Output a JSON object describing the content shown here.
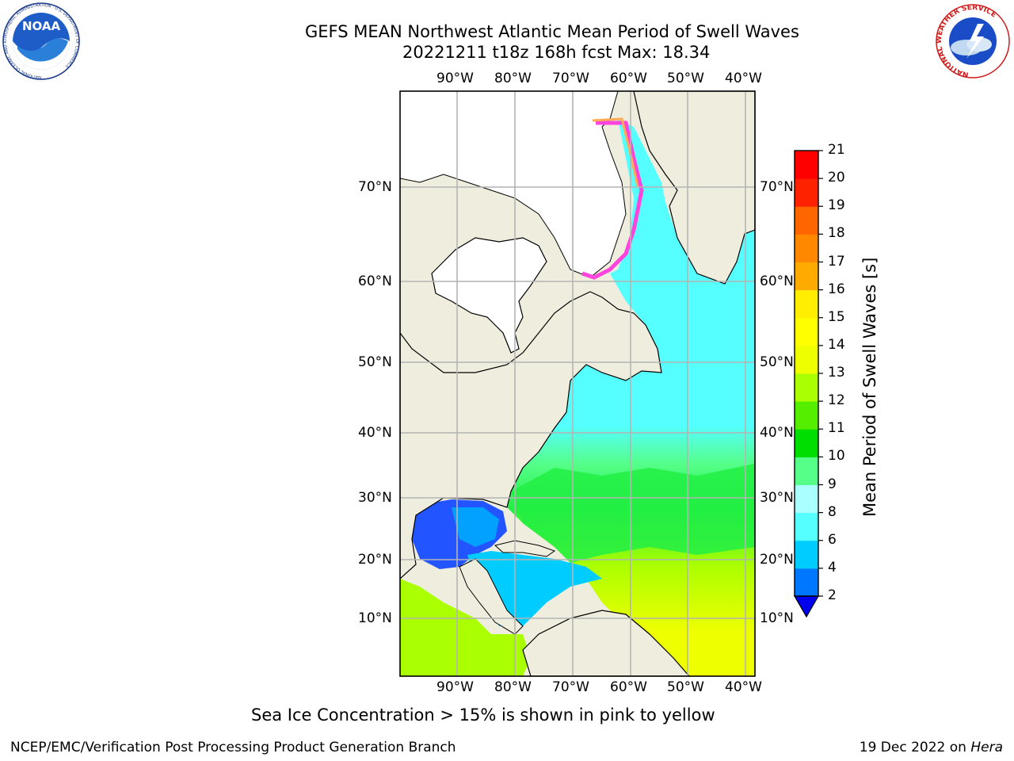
{
  "header": {
    "title_line1": "GEFS MEAN Northwest Atlantic Mean Period of Swell Waves",
    "title_line2": "20221211 t18z 168h fcst   Max: 18.34"
  },
  "logos": {
    "noaa_text": "NOAA",
    "noaa_ring_text": "NATIONAL OCEANIC AND ATMOSPHERIC ADMINISTRATION · U.S. DEPARTMENT OF COMMERCE",
    "nws_ring_text": "NATIONAL WEATHER SERVICE"
  },
  "map": {
    "lon_labels": [
      "90°W",
      "80°W",
      "70°W",
      "60°W",
      "50°W",
      "40°W"
    ],
    "lat_labels": [
      "70°N",
      "60°N",
      "50°N",
      "40°N",
      "30°N",
      "20°N",
      "10°N"
    ],
    "colors": {
      "land": "#efedde",
      "ice_free_land": "#ffffff",
      "grid": "#b4b4b4"
    }
  },
  "colorbar": {
    "label": "Mean Period of Swell Waves [s]",
    "ticks": [
      "2",
      "4",
      "6",
      "8",
      "9",
      "10",
      "11",
      "12",
      "13",
      "14",
      "15",
      "16",
      "17",
      "18",
      "19",
      "20",
      "21"
    ],
    "colors": [
      "#0000ee",
      "#0077ff",
      "#00ccff",
      "#00eeff",
      "#55ffff",
      "#aaffff",
      "#55ff88",
      "#22ee44",
      "#00dd00",
      "#55ee00",
      "#aaff00",
      "#ccff00",
      "#eeff00",
      "#ffff00",
      "#ffee00",
      "#ffcc00",
      "#ffaa00",
      "#ff8800",
      "#ff6600",
      "#ff4400",
      "#ff2200",
      "#ff0000"
    ]
  },
  "note": "Sea Ice Concentration > 15% is shown in pink to yellow",
  "footer": {
    "left": "NCEP/EMC/Verification Post Processing Product Generation Branch",
    "date": "19 Dec 2022 on ",
    "machine": "Hera"
  }
}
